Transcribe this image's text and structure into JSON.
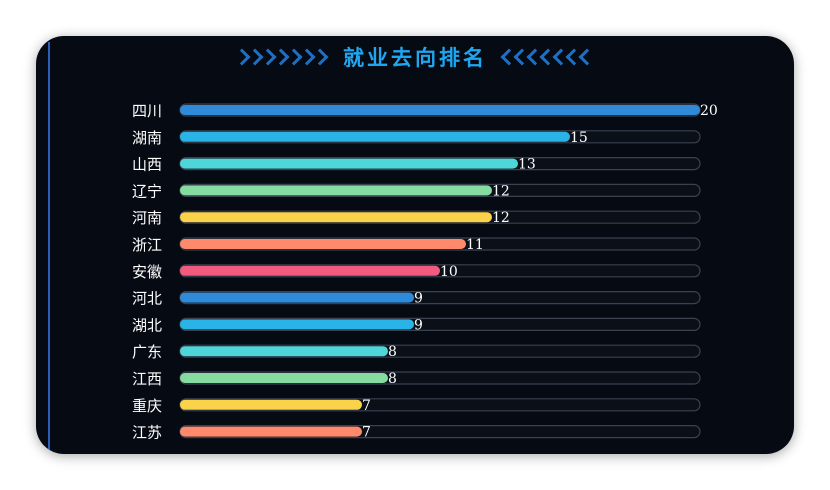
{
  "title": "就业去向排名",
  "chart_data": {
    "type": "bar",
    "orientation": "horizontal",
    "categories": [
      "四川",
      "湖南",
      "山西",
      "辽宁",
      "河南",
      "浙江",
      "安徽",
      "河北",
      "湖北",
      "广东",
      "江西",
      "重庆",
      "江苏"
    ],
    "values": [
      20,
      15,
      13,
      12,
      12,
      11,
      10,
      9,
      9,
      8,
      8,
      7,
      7
    ],
    "xlim": [
      0,
      20
    ],
    "colors": [
      "#2f8bd8",
      "#2ab3e6",
      "#4fd6d8",
      "#86dba0",
      "#fbd34a",
      "#ff8a6b",
      "#f35a80"
    ]
  }
}
